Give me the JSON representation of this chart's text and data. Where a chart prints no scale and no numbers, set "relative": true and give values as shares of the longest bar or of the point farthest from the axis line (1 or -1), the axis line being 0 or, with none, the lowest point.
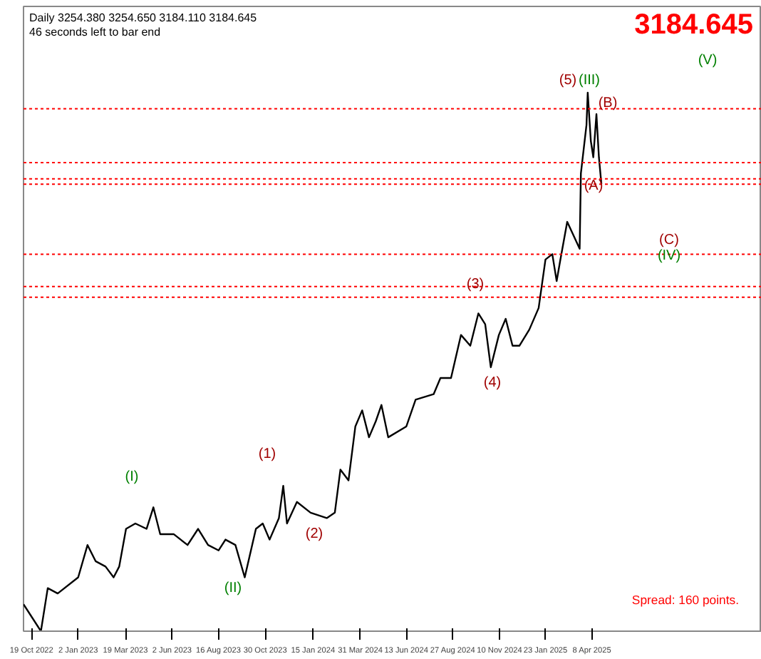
{
  "chart_data": {
    "type": "line",
    "relative": true,
    "grid": false,
    "marker": "none",
    "line_style": "solid",
    "x": [
      "2022-10-06",
      "2022-11-03",
      "2022-11-14",
      "2022-11-30",
      "2023-01-02",
      "2023-01-17",
      "2023-01-30",
      "2023-02-15",
      "2023-02-28",
      "2023-03-09",
      "2023-03-20",
      "2023-04-04",
      "2023-04-22",
      "2023-05-03",
      "2023-05-14",
      "2023-06-05",
      "2023-06-27",
      "2023-07-14",
      "2023-07-30",
      "2023-08-16",
      "2023-08-27",
      "2023-09-12",
      "2023-09-27",
      "2023-10-15",
      "2023-10-26",
      "2023-11-06",
      "2023-11-21",
      "2023-11-28",
      "2023-12-04",
      "2023-12-20",
      "2024-01-11",
      "2024-02-06",
      "2024-02-19",
      "2024-02-28",
      "2024-03-12",
      "2024-03-23",
      "2024-04-03",
      "2024-04-14",
      "2024-04-25",
      "2024-05-04",
      "2024-05-15",
      "2024-06-13",
      "2024-06-28",
      "2024-07-27",
      "2024-08-07",
      "2024-08-24",
      "2024-09-09",
      "2024-09-24",
      "2024-10-07",
      "2024-10-18",
      "2024-10-27",
      "2024-11-09",
      "2024-11-20",
      "2024-12-01",
      "2024-12-12",
      "2024-12-28",
      "2025-01-12",
      "2025-01-23",
      "2025-02-03",
      "2025-02-10",
      "2025-02-16",
      "2025-02-27",
      "2025-03-19",
      "2025-03-21",
      "2025-03-30",
      "2025-04-01",
      "2025-04-06",
      "2025-04-10",
      "2025-04-15",
      "2025-04-19",
      "2025-04-23"
    ],
    "series": [
      {
        "color": "#000000",
        "values": [
          0.05,
          0,
          0.08,
          0.07,
          0.1,
          0.16,
          0.13,
          0.12,
          0.1,
          0.12,
          0.19,
          0.2,
          0.19,
          0.23,
          0.18,
          0.18,
          0.16,
          0.19,
          0.16,
          0.15,
          0.17,
          0.16,
          0.1,
          0.19,
          0.2,
          0.17,
          0.21,
          0.27,
          0.2,
          0.24,
          0.22,
          0.21,
          0.22,
          0.3,
          0.28,
          0.38,
          0.41,
          0.36,
          0.39,
          0.42,
          0.36,
          0.38,
          0.43,
          0.44,
          0.47,
          0.47,
          0.55,
          0.53,
          0.59,
          0.57,
          0.49,
          0.55,
          0.58,
          0.53,
          0.53,
          0.56,
          0.6,
          0.69,
          0.7,
          0.65,
          0.69,
          0.76,
          0.71,
          0.85,
          0.94,
          1,
          0.91,
          0.88,
          0.96,
          0.88,
          0.83
        ]
      }
    ],
    "xlim": [
      "2022-10-06",
      "2026-01-06"
    ],
    "xticks": [
      {
        "value": "2022-10-19",
        "label": "19 Oct 2022"
      },
      {
        "value": "2023-01-02",
        "label": "2 Jan 2023"
      },
      {
        "value": "2023-03-19",
        "label": "19 Mar 2023"
      },
      {
        "value": "2023-06-02",
        "label": "2 Jun 2023"
      },
      {
        "value": "2023-08-16",
        "label": "16 Aug 2023"
      },
      {
        "value": "2023-10-30",
        "label": "30 Oct 2023"
      },
      {
        "value": "2024-01-15",
        "label": "15 Jan 2024"
      },
      {
        "value": "2024-03-31",
        "label": "31 Mar 2024"
      },
      {
        "value": "2024-06-13",
        "label": "13 Jun 2024"
      },
      {
        "value": "2024-08-27",
        "label": "27 Aug 2024"
      },
      {
        "value": "2024-11-10",
        "label": "10 Nov 2024"
      },
      {
        "value": "2025-01-23",
        "label": "23 Jan 2025"
      },
      {
        "value": "2025-04-08",
        "label": "8 Apr 2025"
      }
    ],
    "ref_lines": [
      {
        "axis": "y",
        "value": 0.97,
        "color": "#ff0000",
        "line_style": "dotted"
      },
      {
        "axis": "y",
        "value": 0.87,
        "color": "#ff0000",
        "line_style": "dotted"
      },
      {
        "axis": "y",
        "value": 0.84,
        "color": "#ff0000",
        "line_style": "dotted"
      },
      {
        "axis": "y",
        "value": 0.83,
        "color": "#ff0000",
        "line_style": "dotted"
      },
      {
        "axis": "y",
        "value": 0.7,
        "color": "#ff0000",
        "line_style": "dotted"
      },
      {
        "axis": "y",
        "value": 0.64,
        "color": "#ff0000",
        "line_style": "dotted"
      },
      {
        "axis": "y",
        "value": 0.62,
        "color": "#ff0000",
        "line_style": "dotted"
      }
    ],
    "annotations": [
      "Daily 3254.380 3254.650 3184.110 3184.645",
      "46 seconds left to bar end",
      "3184.645",
      "Spread: 160 points.",
      "(I)",
      "(II)",
      "(1)",
      "(2)",
      "(3)",
      "(4)",
      "(5)",
      "(III)",
      "(B)",
      "(A)",
      "(V)",
      "(C)",
      "(IV)"
    ]
  }
}
